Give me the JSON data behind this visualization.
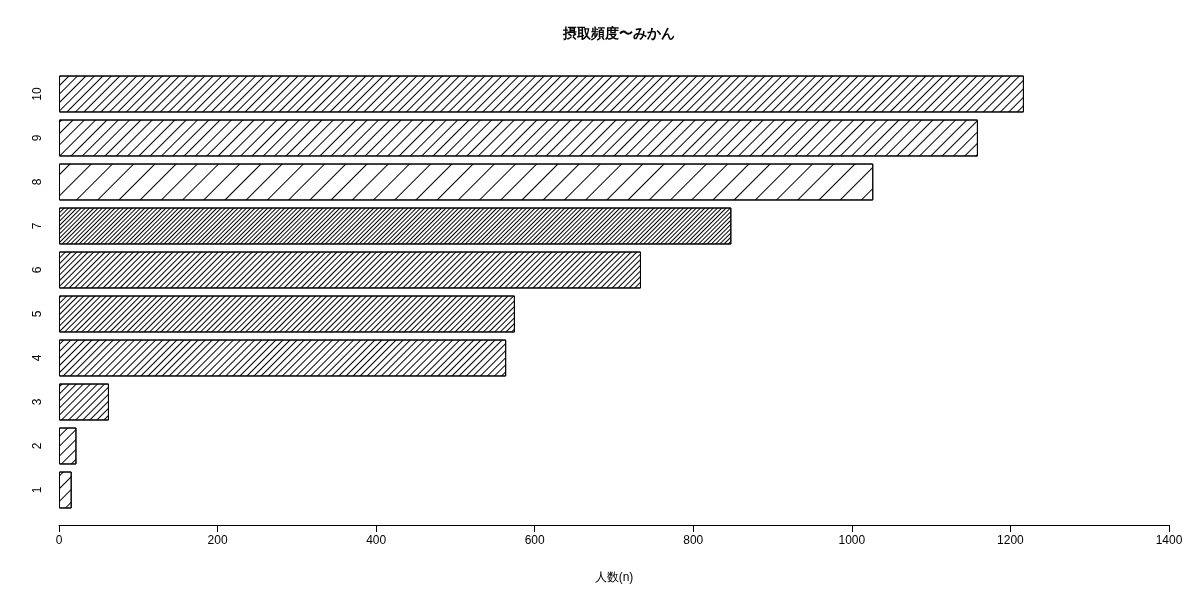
{
  "chart_data": {
    "type": "bar",
    "orientation": "horizontal",
    "title": "摂取頻度〜みかん",
    "xlabel": "人数(n)",
    "categories": [
      "10",
      "9",
      "8",
      "7",
      "6",
      "5",
      "4",
      "3",
      "2",
      "1"
    ],
    "values": [
      1217,
      1159,
      1027,
      848,
      734,
      575,
      564,
      63,
      22,
      16
    ],
    "color": "#000000",
    "xlim": [
      0,
      1400
    ],
    "xticks": [
      0,
      200,
      400,
      600,
      800,
      1000,
      1200,
      1400
    ]
  }
}
